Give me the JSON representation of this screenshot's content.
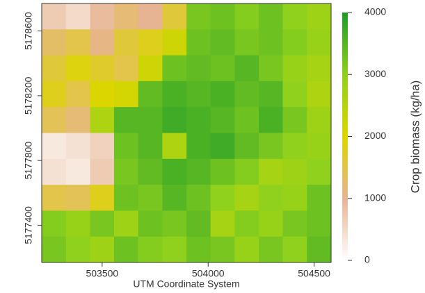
{
  "chart_data": {
    "type": "raster",
    "xlabel": "UTM Coordinate System",
    "colorbar_label": "Crop biomass (kg/ha)",
    "xlim": [
      503215,
      504580
    ],
    "xticks": [
      503500,
      504000,
      504500
    ],
    "ylim": [
      5177170,
      5178770
    ],
    "yticks": [
      5177400,
      5177800,
      5178200,
      5178600
    ],
    "zlim": [
      0,
      4000
    ],
    "zticks": [
      0,
      1000,
      2000,
      3000,
      4000
    ],
    "colors": [
      "#ffffff",
      "#e7b493",
      "#dcd600",
      "#8fd11c",
      "#1e9b2a"
    ],
    "x": [
      503272,
      503386,
      503500,
      503613,
      503727,
      503841,
      503955,
      504068,
      504182,
      504296,
      504409,
      504523
    ],
    "y": [
      5178690,
      5178530,
      5178370,
      5178210,
      5178050,
      5177890,
      5177730,
      5177570,
      5177410,
      5177250
    ],
    "values": [
      [
        700,
        500,
        900,
        1200,
        1000,
        1600,
        3200,
        3300,
        3100,
        3300,
        3000,
        2800
      ],
      [
        1300,
        1500,
        1100,
        1600,
        1800,
        2200,
        3300,
        3400,
        3200,
        3300,
        3100,
        2900
      ],
      [
        1600,
        1900,
        1700,
        1500,
        2200,
        3300,
        3400,
        3300,
        3500,
        3200,
        2900,
        2700
      ],
      [
        1800,
        1500,
        2000,
        2100,
        3400,
        3600,
        3500,
        3600,
        3400,
        3500,
        3000,
        2600
      ],
      [
        1400,
        1200,
        2600,
        3500,
        3500,
        3700,
        3600,
        3500,
        3300,
        3600,
        3200,
        2800
      ],
      [
        300,
        400,
        600,
        3300,
        3500,
        2600,
        3600,
        3700,
        3400,
        3200,
        3000,
        2900
      ],
      [
        400,
        300,
        700,
        3200,
        3400,
        3600,
        3500,
        3300,
        3100,
        2700,
        2800,
        3000
      ],
      [
        1500,
        1400,
        1800,
        3300,
        3200,
        3500,
        3300,
        3000,
        2700,
        3000,
        2900,
        3300
      ],
      [
        3100,
        2900,
        3200,
        2800,
        3300,
        3200,
        3400,
        2700,
        3100,
        2900,
        3200,
        3300
      ],
      [
        3200,
        3000,
        2800,
        3300,
        3100,
        3000,
        3300,
        3200,
        2900,
        3200,
        3000,
        3400
      ]
    ]
  }
}
